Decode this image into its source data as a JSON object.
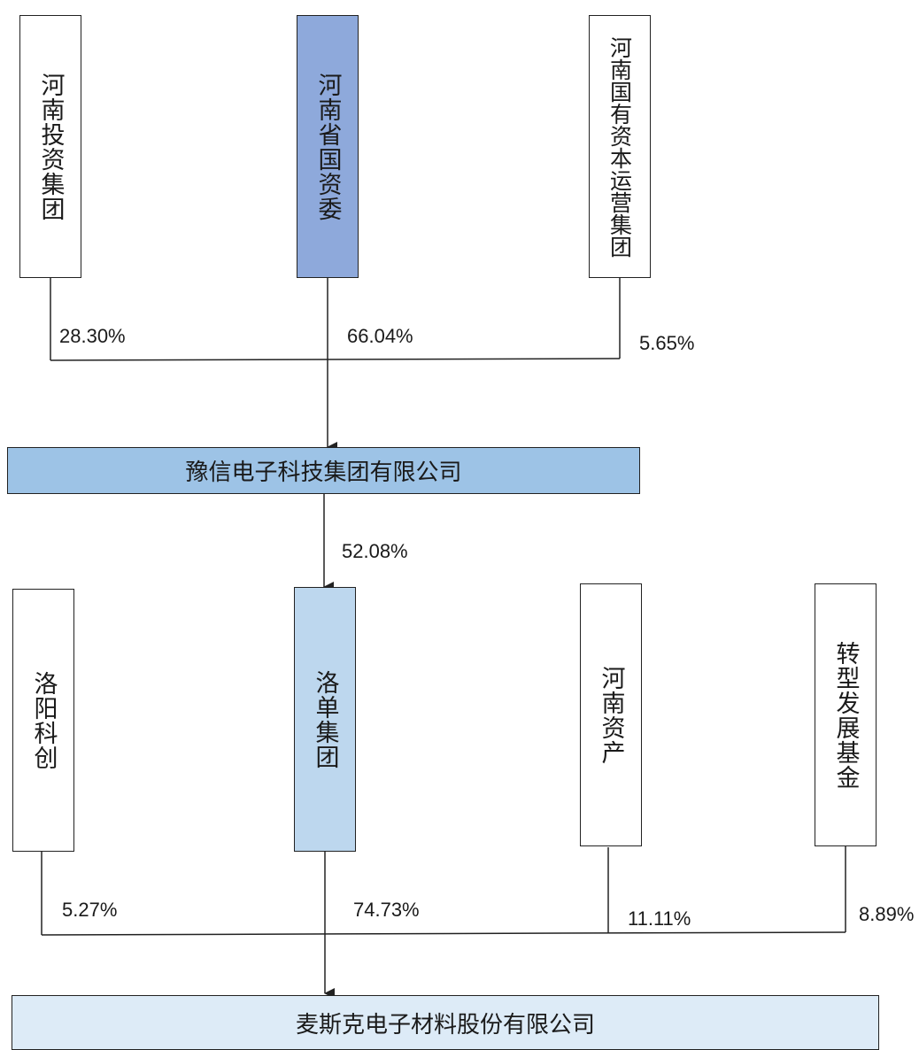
{
  "colors": {
    "sasac_fill": "#8ea9db",
    "yuxin_fill": "#9dc3e6",
    "luodan_fill": "#bdd7ee",
    "maxwell_fill": "#ddebf7",
    "white_fill": "#ffffff",
    "line": "#222222"
  },
  "top_shareholders": [
    {
      "name": "河南投资集团",
      "pct": "28.30%"
    },
    {
      "name": "河南省国资委",
      "pct": "66.04%"
    },
    {
      "name": "河南国有资本运营集团",
      "pct": "5.65%"
    }
  ],
  "middle_company": {
    "name": "豫信电子科技集团有限公司",
    "pct": "52.08%"
  },
  "bottom_shareholders": [
    {
      "name": "洛阳科创",
      "pct": "5.27%"
    },
    {
      "name": "洛单集团",
      "pct": "74.73%"
    },
    {
      "name": "河南资产",
      "pct": "11.11%"
    },
    {
      "name": "转型发展基金",
      "pct": "8.89%"
    }
  ],
  "target_company": {
    "name": "麦斯克电子材料股份有限公司"
  }
}
